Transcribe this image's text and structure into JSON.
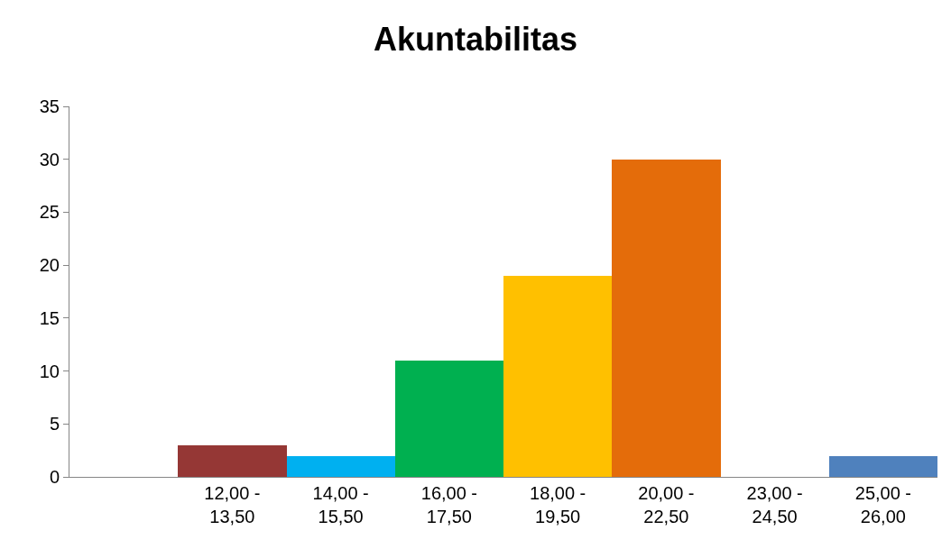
{
  "chart_data": {
    "type": "bar",
    "title": "Akuntabilitas",
    "categories": [
      null,
      "12,00 -\n13,50",
      "14,00 -\n15,50",
      "16,00 -\n17,50",
      "18,00 -\n19,50",
      "20,00 -\n22,50",
      "23,00 -\n24,50",
      "25,00 -\n26,00"
    ],
    "values": [
      null,
      3,
      2,
      11,
      19,
      30,
      0,
      2
    ],
    "colors": [
      "#000000",
      "#953735",
      "#00b0f0",
      "#00b050",
      "#ffc000",
      "#e46c0a",
      "#4f81bd",
      "#4f81bd"
    ],
    "ylim": [
      0,
      35
    ],
    "yticks": [
      0,
      5,
      10,
      15,
      20,
      25,
      30,
      35
    ]
  }
}
